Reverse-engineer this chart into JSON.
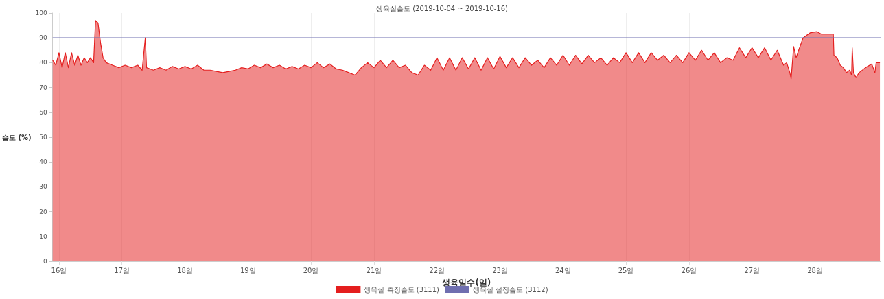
{
  "chart_data": {
    "type": "area",
    "title": "생육실습도 (2019-10-04 ~ 2019-10-16)",
    "xlabel": "생육일수(일)",
    "ylabel": "습도 (%)",
    "xlim": [
      15.9,
      29.04
    ],
    "xticks": [
      {
        "value": 16,
        "label": "16일"
      },
      {
        "value": 17,
        "label": "17일"
      },
      {
        "value": 18,
        "label": "18일"
      },
      {
        "value": 19,
        "label": "19일"
      },
      {
        "value": 20,
        "label": "20일"
      },
      {
        "value": 21,
        "label": "21일"
      },
      {
        "value": 22,
        "label": "22일"
      },
      {
        "value": 23,
        "label": "23일"
      },
      {
        "value": 24,
        "label": "24일"
      },
      {
        "value": 25,
        "label": "25일"
      },
      {
        "value": 26,
        "label": "26일"
      },
      {
        "value": 27,
        "label": "27일"
      },
      {
        "value": 28,
        "label": "28일"
      }
    ],
    "ylim": [
      0,
      100
    ],
    "yticks": [
      0,
      10,
      20,
      30,
      40,
      50,
      60,
      70,
      80,
      90,
      100
    ],
    "grid": "x",
    "legend": "bottom",
    "marker": "none",
    "series": [
      {
        "name": "생육실 측정습도 (3111)",
        "color": "#e41e1e",
        "x": [
          15.9,
          15.95,
          16.0,
          16.05,
          16.1,
          16.15,
          16.2,
          16.25,
          16.3,
          16.35,
          16.4,
          16.45,
          16.5,
          16.55,
          16.58,
          16.62,
          16.66,
          16.7,
          16.75,
          16.85,
          16.95,
          17.05,
          17.15,
          17.25,
          17.32,
          17.37,
          17.39,
          17.5,
          17.6,
          17.7,
          17.8,
          17.9,
          18.0,
          18.1,
          18.2,
          18.3,
          18.4,
          18.5,
          18.6,
          18.7,
          18.8,
          18.9,
          19.0,
          19.1,
          19.2,
          19.3,
          19.4,
          19.5,
          19.6,
          19.7,
          19.8,
          19.9,
          20.0,
          20.1,
          20.2,
          20.3,
          20.4,
          20.5,
          20.6,
          20.7,
          20.8,
          20.9,
          21.0,
          21.1,
          21.2,
          21.3,
          21.4,
          21.5,
          21.6,
          21.7,
          21.8,
          21.9,
          22.0,
          22.1,
          22.2,
          22.3,
          22.4,
          22.5,
          22.6,
          22.7,
          22.8,
          22.9,
          23.0,
          23.1,
          23.2,
          23.3,
          23.4,
          23.5,
          23.6,
          23.7,
          23.8,
          23.9,
          24.0,
          24.1,
          24.2,
          24.3,
          24.4,
          24.5,
          24.6,
          24.7,
          24.8,
          24.9,
          25.0,
          25.1,
          25.2,
          25.3,
          25.4,
          25.5,
          25.6,
          25.7,
          25.8,
          25.9,
          26.0,
          26.1,
          26.2,
          26.3,
          26.4,
          26.5,
          26.6,
          26.7,
          26.8,
          26.9,
          27.0,
          27.1,
          27.2,
          27.3,
          27.4,
          27.5,
          27.55,
          27.6,
          27.62,
          27.66,
          27.7,
          27.74,
          27.81,
          27.92,
          28.03,
          28.1,
          28.29,
          28.3,
          28.35,
          28.4,
          28.45,
          28.5,
          28.55,
          28.58,
          28.59,
          28.61,
          28.65,
          28.7,
          28.8,
          28.9,
          28.95,
          28.97,
          29.03
        ],
        "values": [
          81,
          79,
          84,
          78,
          84,
          78,
          84,
          79,
          83,
          79,
          82,
          80,
          82,
          80,
          97,
          96,
          88,
          82,
          80,
          79,
          78,
          79,
          78,
          79,
          77,
          90,
          78,
          77,
          78,
          77,
          78.5,
          77.5,
          78.5,
          77.5,
          79,
          77,
          77,
          76.5,
          76,
          76.5,
          77,
          78,
          77.5,
          79,
          78,
          79.5,
          78,
          79,
          77.5,
          78.5,
          77.5,
          79,
          78,
          80,
          78,
          79.5,
          77.5,
          77,
          76,
          75,
          78,
          80,
          78,
          81,
          78,
          81,
          78,
          79,
          76,
          75,
          79,
          77,
          82,
          77,
          82,
          77,
          82,
          77.5,
          82,
          77,
          82,
          77.5,
          82.5,
          78,
          82,
          78,
          82,
          79,
          81,
          78,
          82,
          79,
          83,
          79,
          83,
          79.5,
          83,
          80,
          82,
          79,
          82,
          80,
          84,
          80,
          84,
          80,
          84,
          81,
          83,
          80,
          83,
          80,
          84,
          81,
          85,
          81,
          84,
          80,
          82,
          81,
          86,
          82,
          86,
          82,
          86,
          81,
          85,
          79,
          80,
          76,
          73.5,
          86.5,
          82,
          85,
          90,
          92,
          92.5,
          91.5,
          91.5,
          83,
          82,
          79,
          78,
          76,
          77,
          75,
          86,
          76,
          74,
          76,
          78,
          79.5,
          76,
          80,
          80
        ]
      },
      {
        "name": "생육실 설정습도 (3112)",
        "type": "line",
        "color": "#6f6fb0",
        "x": [
          15.9,
          29.04
        ],
        "values": [
          90,
          90
        ]
      }
    ]
  }
}
